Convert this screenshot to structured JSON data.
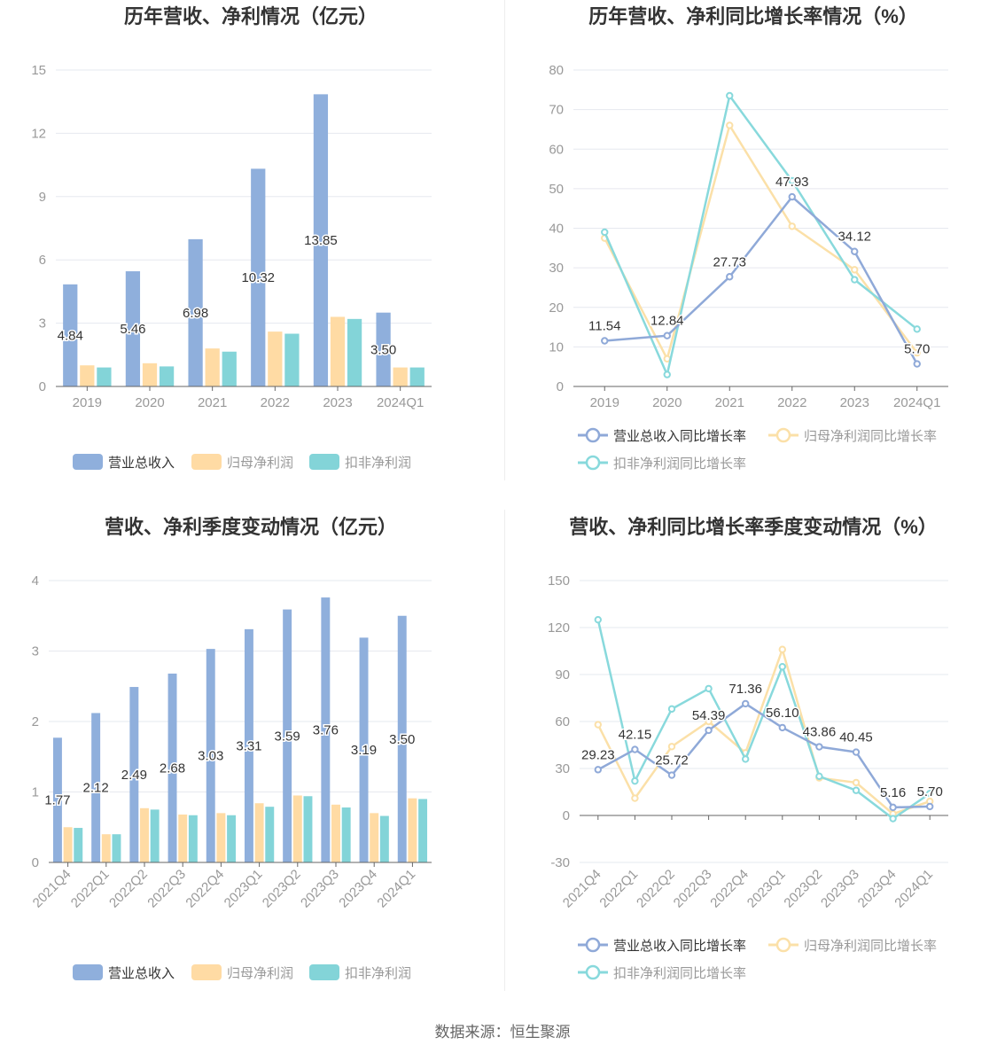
{
  "source_text": "数据来源：恒生聚源",
  "colors": {
    "revenue": "#8fafdc",
    "net_profit": "#ffdba4",
    "deducted_profit": "#83d4d8"
  },
  "chart_data": [
    {
      "id": "annual-bar",
      "type": "bar",
      "title": "历年营收、净利情况（亿元）",
      "categories": [
        "2019",
        "2020",
        "2021",
        "2022",
        "2023",
        "2024Q1"
      ],
      "ylim": [
        0,
        15
      ],
      "yticks": [
        "0",
        "3",
        "6",
        "9",
        "12",
        "15"
      ],
      "series": [
        {
          "name": "营业总收入",
          "values": [
            4.84,
            5.46,
            6.98,
            10.32,
            13.85,
            3.5
          ],
          "labels": [
            "4.84",
            "5.46",
            "6.98",
            "10.32",
            "13.85",
            "3.50"
          ]
        },
        {
          "name": "归母净利润",
          "values": [
            1.0,
            1.1,
            1.8,
            2.6,
            3.3,
            0.9
          ]
        },
        {
          "name": "扣非净利润",
          "values": [
            0.9,
            0.95,
            1.65,
            2.5,
            3.2,
            0.9
          ]
        }
      ],
      "legend": "bottom",
      "grid": true
    },
    {
      "id": "annual-line",
      "type": "line",
      "title": "历年营收、净利同比增长率情况（%）",
      "categories": [
        "2019",
        "2020",
        "2021",
        "2022",
        "2023",
        "2024Q1"
      ],
      "ylim": [
        0,
        80
      ],
      "yticks": [
        "0",
        "10",
        "20",
        "30",
        "40",
        "50",
        "60",
        "70",
        "80"
      ],
      "series": [
        {
          "name": "营业总收入同比增长率",
          "values": [
            11.54,
            12.84,
            27.73,
            47.93,
            34.12,
            5.7
          ],
          "labels": [
            "11.54",
            "12.84",
            "27.73",
            "47.93",
            "34.12",
            "5.70"
          ]
        },
        {
          "name": "归母净利润同比增长率",
          "values": [
            37.5,
            7.0,
            66.0,
            40.5,
            29.5,
            8.5
          ]
        },
        {
          "name": "扣非净利润同比增长率",
          "values": [
            39.0,
            3.0,
            73.5,
            52.0,
            27.0,
            14.5
          ]
        }
      ],
      "legend": "bottom",
      "grid": true
    },
    {
      "id": "quarterly-bar",
      "type": "bar",
      "title": "营收、净利季度变动情况（亿元）",
      "categories": [
        "2021Q4",
        "2022Q1",
        "2022Q2",
        "2022Q3",
        "2022Q4",
        "2023Q1",
        "2023Q2",
        "2023Q3",
        "2023Q4",
        "2024Q1"
      ],
      "ylim": [
        0,
        4
      ],
      "yticks": [
        "0",
        "1",
        "2",
        "3",
        "4"
      ],
      "series": [
        {
          "name": "营业总收入",
          "values": [
            1.77,
            2.12,
            2.49,
            2.68,
            3.03,
            3.31,
            3.59,
            3.76,
            3.19,
            3.5
          ],
          "labels": [
            "1.77",
            "2.12",
            "2.49",
            "2.68",
            "3.03",
            "3.31",
            "3.59",
            "3.76",
            "3.19",
            "3.50"
          ]
        },
        {
          "name": "归母净利润",
          "values": [
            0.5,
            0.4,
            0.77,
            0.68,
            0.7,
            0.84,
            0.95,
            0.82,
            0.7,
            0.91
          ]
        },
        {
          "name": "扣非净利润",
          "values": [
            0.49,
            0.4,
            0.75,
            0.67,
            0.67,
            0.79,
            0.94,
            0.78,
            0.66,
            0.9
          ]
        }
      ],
      "legend": "bottom",
      "grid": true
    },
    {
      "id": "quarterly-line",
      "type": "line",
      "title": "营收、净利同比增长率季度变动情况（%）",
      "categories": [
        "2021Q4",
        "2022Q1",
        "2022Q2",
        "2022Q3",
        "2022Q4",
        "2023Q1",
        "2023Q2",
        "2023Q3",
        "2023Q4",
        "2024Q1"
      ],
      "ylim": [
        -30,
        150
      ],
      "yticks": [
        "-30",
        "0",
        "30",
        "60",
        "90",
        "120",
        "150"
      ],
      "series": [
        {
          "name": "营业总收入同比增长率",
          "values": [
            29.23,
            42.15,
            25.72,
            54.39,
            71.36,
            56.1,
            43.86,
            40.45,
            5.16,
            5.7
          ],
          "labels": [
            "29.23",
            "42.15",
            "25.72",
            "54.39",
            "71.36",
            "56.10",
            "43.86",
            "40.45",
            "5.16",
            "5.70"
          ]
        },
        {
          "name": "归母净利润同比增长率",
          "values": [
            58.0,
            11.0,
            44.0,
            60.0,
            40.0,
            106.0,
            24.0,
            21.0,
            1.0,
            9.0
          ]
        },
        {
          "name": "扣非净利润同比增长率",
          "values": [
            125.0,
            22.0,
            68.0,
            81.0,
            36.0,
            95.0,
            25.0,
            16.0,
            -2.0,
            14.0
          ]
        }
      ],
      "legend": "bottom",
      "grid": true
    }
  ]
}
